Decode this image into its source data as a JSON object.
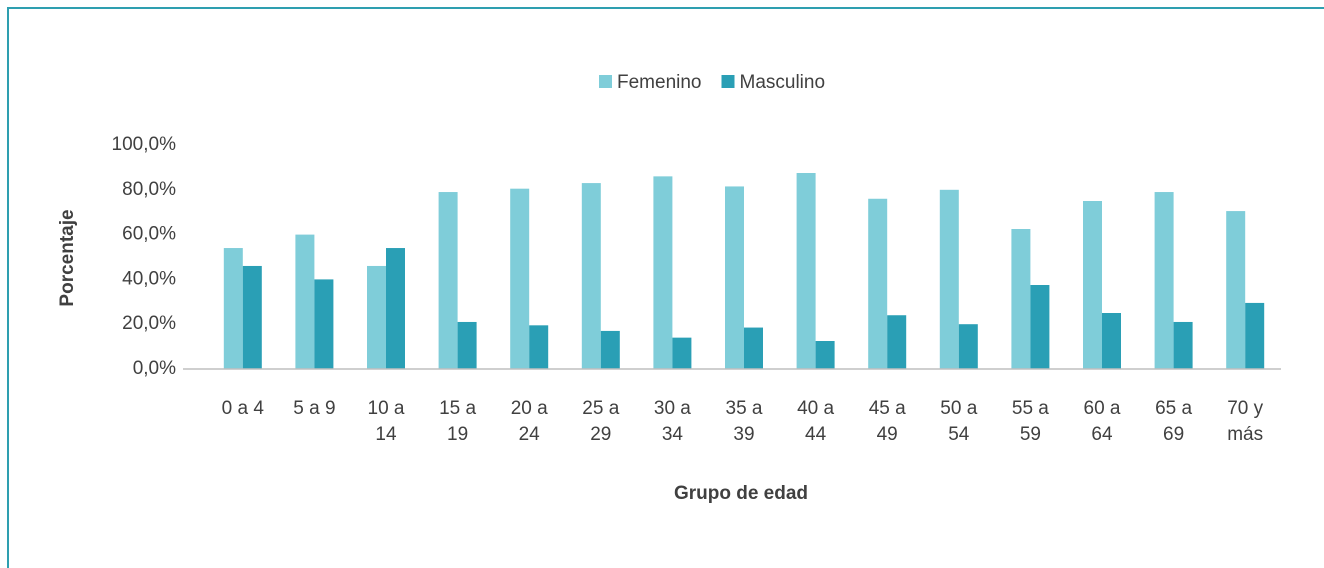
{
  "chart_data": {
    "type": "bar",
    "categories": [
      "0 a 4",
      "5 a 9",
      "10 a 14",
      "15 a 19",
      "20 a 24",
      "25 a 29",
      "30 a 34",
      "35 a 39",
      "40 a 44",
      "45 a 49",
      "50 a 54",
      "55 a 59",
      "60 a 64",
      "65 a 69",
      "70 y más"
    ],
    "series": [
      {
        "name": "Femenino",
        "color": "#7fcdd9",
        "values": [
          54,
          60,
          46,
          79,
          80.5,
          83,
          86,
          81.5,
          87.5,
          76,
          80,
          62.5,
          75,
          79,
          70.5
        ]
      },
      {
        "name": "Masculino",
        "color": "#2a9fb5",
        "values": [
          46,
          40,
          54,
          21,
          19.5,
          17,
          14,
          18.5,
          12.5,
          24,
          20,
          37.5,
          25,
          21,
          29.5
        ]
      }
    ],
    "xlabel": "Grupo de edad",
    "ylabel": "Porcentaje",
    "ylim": [
      0,
      100
    ],
    "yticks": [
      {
        "value": 0,
        "label": "0,0%"
      },
      {
        "value": 20,
        "label": "20,0%"
      },
      {
        "value": 40,
        "label": "40,0%"
      },
      {
        "value": 60,
        "label": "60,0%"
      },
      {
        "value": 80,
        "label": "80,0%"
      },
      {
        "value": 100,
        "label": "100,0%"
      }
    ],
    "legend": "top"
  }
}
